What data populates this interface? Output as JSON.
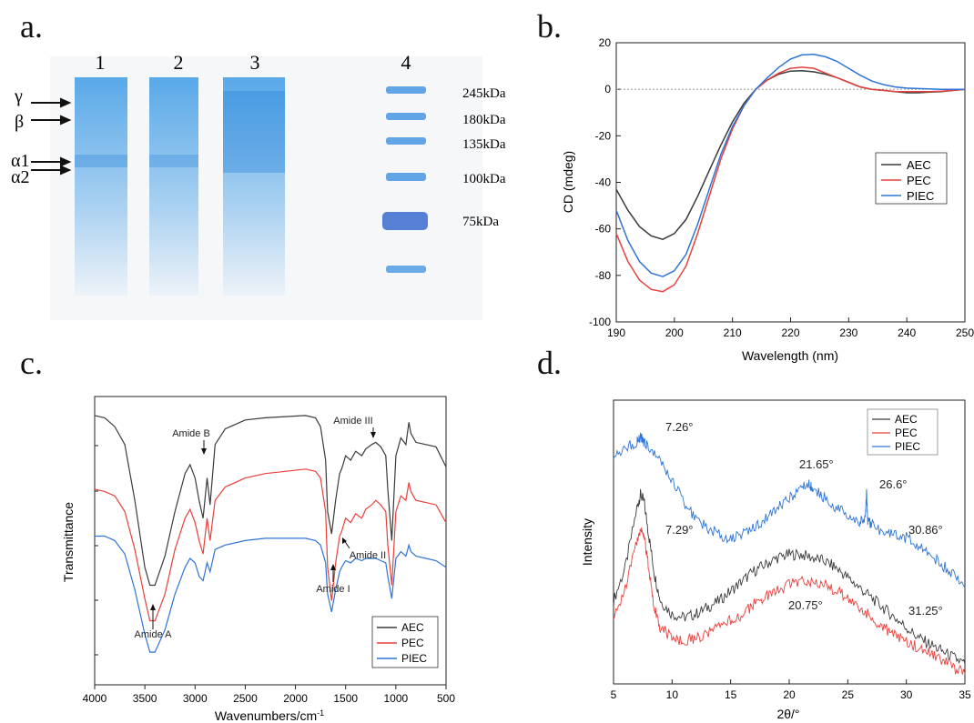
{
  "panels": {
    "a": "a.",
    "b": "b.",
    "c": "c.",
    "d": "d."
  },
  "colors": {
    "AEC": "#3a3a3a",
    "PEC": "#e8403c",
    "PIEC": "#2f74d6",
    "gel_stain": "#3d9be6",
    "gel_marker": "#3a6ad0"
  },
  "chart_data": [
    {
      "panel": "a",
      "type": "gel",
      "lanes": [
        "1",
        "2",
        "3",
        "4"
      ],
      "band_labels": [
        "γ",
        "β",
        "α1",
        "α2"
      ],
      "marker_labels": [
        "245kDa",
        "180kDa",
        "135kDa",
        "100kDa",
        "75kDa"
      ]
    },
    {
      "panel": "b",
      "type": "line",
      "xlabel": "Wavelength (nm)",
      "ylabel": "CD (mdeg)",
      "xlim": [
        190,
        250
      ],
      "ylim": [
        -100,
        20
      ],
      "xticks": [
        190,
        200,
        210,
        220,
        230,
        240,
        250
      ],
      "yticks": [
        -100,
        -80,
        -60,
        -40,
        -20,
        0,
        20
      ],
      "legend_position": "right",
      "reference_line_y": 0,
      "series": [
        {
          "name": "AEC",
          "x": [
            190,
            192,
            194,
            196,
            198,
            200,
            202,
            204,
            206,
            208,
            210,
            212,
            214,
            216,
            218,
            220,
            222,
            224,
            226,
            228,
            230,
            232,
            234,
            236,
            238,
            240,
            242,
            244,
            246,
            248,
            250
          ],
          "y": [
            -43,
            -52,
            -59,
            -63,
            -64.5,
            -62,
            -56,
            -46,
            -35,
            -24,
            -14,
            -6,
            0,
            4,
            6.5,
            7.8,
            8,
            7.5,
            6.5,
            5,
            3,
            1,
            0,
            -0.5,
            -1,
            -1.5,
            -1.5,
            -1.2,
            -1,
            -0.5,
            0
          ]
        },
        {
          "name": "PEC",
          "x": [
            190,
            192,
            194,
            196,
            198,
            200,
            202,
            204,
            206,
            208,
            210,
            212,
            214,
            216,
            218,
            220,
            222,
            224,
            226,
            228,
            230,
            232,
            234,
            236,
            238,
            240,
            242,
            244,
            246,
            248,
            250
          ],
          "y": [
            -62,
            -74,
            -82,
            -86,
            -87,
            -84,
            -76,
            -62,
            -46,
            -30,
            -17,
            -7,
            0,
            4,
            7,
            9,
            9.5,
            9,
            7,
            5,
            3,
            1,
            0,
            -0.5,
            -1,
            -1,
            -1,
            -1,
            -0.8,
            -0.5,
            0
          ]
        },
        {
          "name": "PIEC",
          "x": [
            190,
            192,
            194,
            196,
            198,
            200,
            202,
            204,
            206,
            208,
            210,
            212,
            214,
            216,
            218,
            220,
            222,
            224,
            226,
            228,
            230,
            232,
            234,
            236,
            238,
            240,
            242,
            244,
            246,
            248,
            250
          ],
          "y": [
            -52,
            -65,
            -74,
            -79,
            -80.5,
            -78,
            -71,
            -58,
            -43,
            -28,
            -16,
            -7,
            0,
            5,
            9.5,
            13,
            14.8,
            15,
            14,
            12,
            9,
            6,
            3.5,
            2,
            1,
            0.5,
            0.3,
            0.2,
            0,
            0,
            0
          ]
        }
      ]
    },
    {
      "panel": "c",
      "type": "line",
      "xlabel": "Wavenumbers/cm",
      "xlabel_superscript": "-1",
      "ylabel": "Transmittance",
      "xlim": [
        4000,
        500
      ],
      "xticks": [
        4000,
        3500,
        3000,
        2500,
        2000,
        1500,
        1000,
        500
      ],
      "legend_position": "bottom-right",
      "annotations": [
        {
          "text": "Amide A",
          "x": 3430
        },
        {
          "text": "Amide B",
          "x": 2930
        },
        {
          "text": "Amide I",
          "x": 1640
        },
        {
          "text": "Amide II",
          "x": 1540
        },
        {
          "text": "Amide III",
          "x": 1240
        }
      ],
      "series": [
        {
          "name": "AEC",
          "x": [
            4000,
            3900,
            3800,
            3700,
            3600,
            3500,
            3450,
            3400,
            3300,
            3200,
            3100,
            3050,
            3000,
            2960,
            2920,
            2880,
            2850,
            2800,
            2700,
            2500,
            2300,
            2100,
            1900,
            1800,
            1750,
            1700,
            1680,
            1640,
            1600,
            1560,
            1540,
            1500,
            1450,
            1400,
            1340,
            1300,
            1240,
            1200,
            1150,
            1100,
            1080,
            1040,
            1000,
            950,
            900,
            870,
            850,
            800,
            700,
            600,
            500
          ],
          "y": [
            0.98,
            0.97,
            0.93,
            0.85,
            0.6,
            0.3,
            0.22,
            0.22,
            0.35,
            0.55,
            0.72,
            0.76,
            0.7,
            0.6,
            0.52,
            0.7,
            0.58,
            0.85,
            0.92,
            0.96,
            0.97,
            0.975,
            0.98,
            0.97,
            0.93,
            0.78,
            0.55,
            0.45,
            0.6,
            0.72,
            0.74,
            0.8,
            0.78,
            0.82,
            0.8,
            0.83,
            0.85,
            0.86,
            0.84,
            0.8,
            0.65,
            0.42,
            0.8,
            0.88,
            0.85,
            0.95,
            0.9,
            0.86,
            0.85,
            0.84,
            0.75
          ]
        },
        {
          "name": "PEC",
          "x": [
            4000,
            3900,
            3800,
            3700,
            3600,
            3500,
            3450,
            3400,
            3300,
            3200,
            3100,
            3050,
            3000,
            2960,
            2920,
            2880,
            2850,
            2800,
            2700,
            2500,
            2300,
            2100,
            1900,
            1800,
            1750,
            1700,
            1680,
            1640,
            1600,
            1560,
            1540,
            1500,
            1450,
            1400,
            1340,
            1300,
            1240,
            1200,
            1150,
            1100,
            1080,
            1040,
            1000,
            950,
            900,
            870,
            850,
            800,
            700,
            600,
            500
          ],
          "y": [
            0.65,
            0.64,
            0.62,
            0.55,
            0.38,
            0.16,
            0.06,
            0.06,
            0.18,
            0.38,
            0.52,
            0.56,
            0.5,
            0.42,
            0.36,
            0.52,
            0.42,
            0.6,
            0.66,
            0.7,
            0.72,
            0.73,
            0.74,
            0.73,
            0.7,
            0.55,
            0.3,
            0.15,
            0.32,
            0.44,
            0.46,
            0.52,
            0.5,
            0.54,
            0.52,
            0.56,
            0.58,
            0.6,
            0.58,
            0.55,
            0.4,
            0.22,
            0.55,
            0.62,
            0.6,
            0.68,
            0.64,
            0.6,
            0.59,
            0.58,
            0.5
          ]
        },
        {
          "name": "PIEC",
          "x": [
            4000,
            3900,
            3800,
            3700,
            3600,
            3500,
            3450,
            3400,
            3300,
            3200,
            3100,
            3050,
            3000,
            2960,
            2920,
            2880,
            2850,
            2800,
            2700,
            2500,
            2300,
            2100,
            1900,
            1800,
            1750,
            1700,
            1680,
            1640,
            1600,
            1560,
            1540,
            1500,
            1450,
            1400,
            1340,
            1300,
            1240,
            1200,
            1150,
            1100,
            1080,
            1040,
            1000,
            950,
            900,
            870,
            850,
            800,
            700,
            600,
            500
          ],
          "y": [
            0.44,
            0.44,
            0.42,
            0.36,
            0.2,
            0.0,
            -0.08,
            -0.08,
            0.02,
            0.18,
            0.3,
            0.34,
            0.32,
            0.26,
            0.24,
            0.32,
            0.28,
            0.38,
            0.4,
            0.42,
            0.43,
            0.43,
            0.43,
            0.42,
            0.4,
            0.32,
            0.18,
            0.1,
            0.2,
            0.28,
            0.3,
            0.33,
            0.32,
            0.34,
            0.33,
            0.34,
            0.34,
            0.34,
            0.33,
            0.32,
            0.26,
            0.16,
            0.34,
            0.37,
            0.35,
            0.4,
            0.37,
            0.35,
            0.34,
            0.33,
            0.3
          ]
        }
      ]
    },
    {
      "panel": "d",
      "type": "line",
      "xlabel": "2θ/°",
      "ylabel": "Intensity",
      "xlim": [
        5,
        35
      ],
      "xticks": [
        5,
        10,
        15,
        20,
        25,
        30,
        35
      ],
      "legend_position": "top-right",
      "annotations": [
        {
          "text": "7.26°",
          "x": 7.26
        },
        {
          "text": "21.65°",
          "x": 21.65
        },
        {
          "text": "26.6°",
          "x": 26.6
        },
        {
          "text": "30.86°",
          "x": 30.86
        },
        {
          "text": "7.29°",
          "x": 7.29
        },
        {
          "text": "20.75°",
          "x": 20.75
        },
        {
          "text": "31.25°",
          "x": 31.25
        }
      ],
      "series": [
        {
          "name": "AEC",
          "x": [
            5,
            6,
            7,
            7.3,
            7.6,
            8,
            8.5,
            9,
            10,
            11,
            12,
            13,
            14,
            15,
            16,
            17,
            18,
            19,
            20,
            21,
            22,
            23,
            24,
            25,
            26,
            27,
            28,
            29,
            30,
            31,
            32,
            33,
            34,
            35
          ],
          "y": [
            0.5,
            0.6,
            0.78,
            0.82,
            0.8,
            0.7,
            0.58,
            0.5,
            0.46,
            0.45,
            0.46,
            0.48,
            0.5,
            0.53,
            0.56,
            0.59,
            0.61,
            0.63,
            0.64,
            0.64,
            0.63,
            0.62,
            0.6,
            0.57,
            0.54,
            0.51,
            0.48,
            0.45,
            0.42,
            0.39,
            0.37,
            0.35,
            0.33,
            0.31
          ]
        },
        {
          "name": "PEC",
          "x": [
            5,
            6,
            7,
            7.3,
            7.6,
            8,
            8.5,
            9,
            10,
            11,
            12,
            13,
            14,
            15,
            16,
            17,
            18,
            19,
            20,
            21,
            22,
            23,
            24,
            25,
            26,
            27,
            28,
            29,
            30,
            31,
            32,
            33,
            34,
            35
          ],
          "y": [
            0.44,
            0.54,
            0.68,
            0.72,
            0.7,
            0.6,
            0.48,
            0.42,
            0.39,
            0.38,
            0.39,
            0.4,
            0.42,
            0.44,
            0.46,
            0.49,
            0.51,
            0.53,
            0.55,
            0.56,
            0.56,
            0.55,
            0.53,
            0.51,
            0.48,
            0.45,
            0.42,
            0.4,
            0.38,
            0.36,
            0.34,
            0.32,
            0.3,
            0.28
          ]
        },
        {
          "name": "PIEC",
          "x": [
            5,
            6,
            7,
            7.3,
            7.6,
            8,
            9,
            10,
            11,
            12,
            13,
            14,
            15,
            16,
            17,
            18,
            19,
            20,
            21,
            21.65,
            22,
            23,
            24,
            25,
            26,
            26.5,
            26.6,
            26.7,
            27,
            28,
            29,
            30,
            31,
            32,
            33,
            34,
            35
          ],
          "y": [
            0.94,
            0.96,
            0.98,
            0.99,
            0.98,
            0.96,
            0.92,
            0.86,
            0.8,
            0.75,
            0.72,
            0.7,
            0.69,
            0.7,
            0.72,
            0.75,
            0.78,
            0.81,
            0.84,
            0.85,
            0.84,
            0.81,
            0.78,
            0.76,
            0.74,
            0.74,
            0.83,
            0.74,
            0.73,
            0.71,
            0.7,
            0.69,
            0.67,
            0.64,
            0.61,
            0.58,
            0.54
          ]
        }
      ]
    }
  ]
}
